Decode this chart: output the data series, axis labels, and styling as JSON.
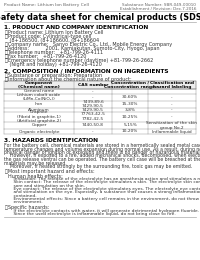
{
  "title": "Safety data sheet for chemical products (SDS)",
  "header_left": "Product Name: Lithium Ion Battery Cell",
  "header_right_l1": "Substance Number: SBR-049-00010",
  "header_right_l2": "Establishment / Revision: Dec.7.2016",
  "s1_title": "1. PRODUCT AND COMPANY IDENTIFICATION",
  "s1_lines": [
    "・Product name: Lithium Ion Battery Cell",
    "・Product code: Cylindrical-type cell",
    "   (8+186500, (8+186600, (8+186604",
    "・Company name:   Sanyo Electric Co., Ltd., Mobile Energy Company",
    "・Address:           2001, Kamiakutan, Sumoto-City, Hyogo, Japan",
    "・Telephone number:   +81-799-26-4111",
    "・Fax number:   +81-799-26-4120",
    "・Emergency telephone number (daytime) +81-799-26-2662",
    "   (Night and holiday) +81-799-26-4120"
  ],
  "s2_title": "2. COMPOSITION / INFORMATION ON INGREDIENTS",
  "s2_sub1": "・Substance or preparation: Preparation",
  "s2_sub2": "・Information about the chemical nature of product:",
  "tbl_hdr": [
    "Component\n(Chemical name)",
    "CAS number",
    "Concentration /\nConcentration range",
    "Classification and\nhazard labeling"
  ],
  "tbl_rows": [
    [
      "General name",
      "-",
      "",
      ""
    ],
    [
      "Lithium cobalt oxide\n(LiMn-Co(NiO₂))",
      "-",
      "30-60%",
      "-"
    ],
    [
      "Iron",
      "7439-89-6\n7429-90-5",
      "15-30%",
      "-"
    ],
    [
      "Aluminum",
      "7429-90-5",
      "3-8%",
      "-"
    ],
    [
      "Graphite\n(Fibrid in graphite-1)\n(Artificial graphite-2)",
      "77763-42-5\n7782-42-5",
      "10-25%",
      "-"
    ],
    [
      "Copper",
      "7440-50-8",
      "5-15%",
      "Sensitization of the skin\ngroup No.2"
    ],
    [
      "Organic electrolyte",
      "-",
      "10-20%",
      "Inflammable liquid"
    ]
  ],
  "s3_title": "3. HAZARDS IDENTIFICATION",
  "s3_body": [
    "For the battery cell, chemical materials are stored in a hermetically sealed metal case, designed to withstand",
    "temperature changes and volume expansion during normal use. As a result, during normal use, there is no",
    "physical danger of ignition or explosion and there is no danger of hazardous material leakage.",
    "    However, if exposed to a fire, added mechanical shocks, decomposed, when electro-chemical reactions occur,",
    "the gas release ventral can be operated. The battery cell case will be breached at the rupture, hazardous",
    "materials may be released.",
    "    Moreover, if heated strongly by the surrounding fire, toxic gas may be emitted."
  ],
  "s3_bullet1": "・Most important hazard and effects:",
  "s3_human": "Human health effects:",
  "s3_inhal": "    Inhalation: The release of the electrolyte has an anesthesia action and stimulates a respiratory tract.",
  "s3_skin1": "    Skin contact: The release of the electrolyte stimulates a skin. The electrolyte skin contact causes a",
  "s3_skin2": "    sore and stimulation on the skin.",
  "s3_eye1": "    Eye contact: The release of the electrolyte stimulates eyes. The electrolyte eye contact causes a sore",
  "s3_eye2": "    and stimulation on the eye. Especially, a substance that causes a strong inflammation of the eyes is",
  "s3_eye3": "    contained.",
  "s3_env1": "    Environmental effects: Since a battery cell remains in the environment, do not throw out it into the",
  "s3_env2": "    environment.",
  "s3_bullet2": "・Specific hazards:",
  "s3_spec1": "    If the electrolyte contacts with water, it will generate detrimental hydrogen fluoride.",
  "s3_spec2": "    Since the used electrolyte is inflammable liquid, do not bring close to fire.",
  "bg": "#ffffff",
  "fg": "#333333",
  "gray": "#777777",
  "lm": 0.04,
  "rm": 0.98,
  "fs_hdr": 4.0,
  "fs_title": 5.8,
  "fs_sec": 4.2,
  "fs_body": 3.5,
  "fs_tbl": 3.2
}
